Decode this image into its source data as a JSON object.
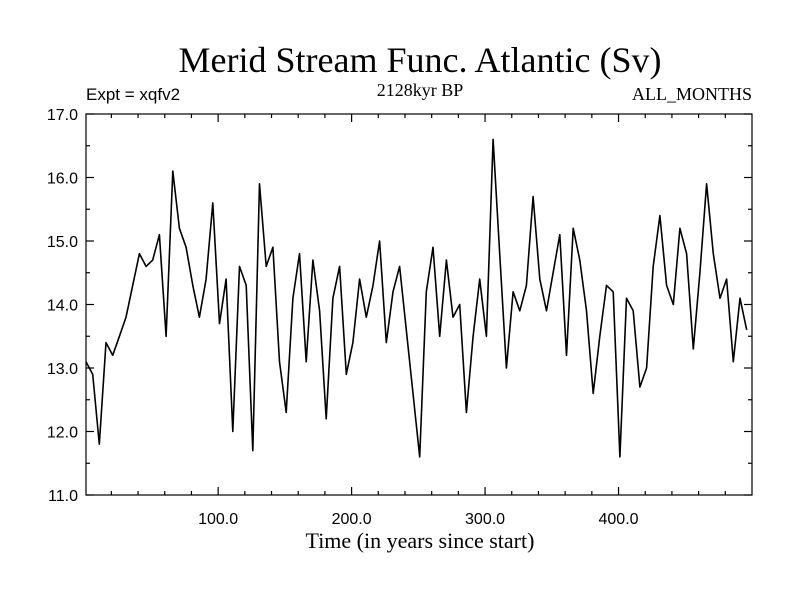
{
  "chart_data": {
    "type": "line",
    "title": "Merid Stream Func. Atlantic (Sv)",
    "subtitle_left": "Expt = xqfv2",
    "subtitle_center": "2128kyr BP",
    "subtitle_right": "ALL_MONTHS",
    "xlabel": "Time (in years since start)",
    "ylabel": "",
    "xlim": [
      1,
      500
    ],
    "ylim": [
      11.0,
      17.0
    ],
    "xticks": [
      100.0,
      200.0,
      300.0,
      400.0
    ],
    "xtick_labels": [
      "100.0",
      "200.0",
      "300.0",
      "400.0"
    ],
    "yticks": [
      11.0,
      12.0,
      13.0,
      14.0,
      15.0,
      16.0,
      17.0
    ],
    "ytick_labels": [
      "11.0",
      "12.0",
      "13.0",
      "14.0",
      "15.0",
      "16.0",
      "17.0"
    ],
    "series": [
      {
        "name": "Merid Stream Func. Atlantic",
        "color": "#000000",
        "x_start": 1,
        "x_step": 5,
        "values": [
          13.1,
          12.9,
          11.8,
          13.4,
          13.2,
          13.5,
          13.8,
          14.3,
          14.8,
          14.6,
          14.7,
          15.1,
          13.5,
          16.1,
          15.2,
          14.9,
          14.3,
          13.8,
          14.4,
          15.6,
          13.7,
          14.4,
          12.0,
          14.6,
          14.3,
          11.7,
          15.9,
          14.6,
          14.9,
          13.1,
          12.3,
          14.1,
          14.8,
          13.1,
          14.7,
          13.9,
          12.2,
          14.1,
          14.6,
          12.9,
          13.4,
          14.4,
          13.8,
          14.3,
          15.0,
          13.4,
          14.2,
          14.6,
          13.6,
          12.6,
          11.6,
          14.2,
          14.9,
          13.5,
          14.7,
          13.8,
          14.0,
          12.3,
          13.5,
          14.4,
          13.5,
          16.6,
          14.8,
          13.0,
          14.2,
          13.9,
          14.3,
          15.7,
          14.4,
          13.9,
          14.5,
          15.1,
          13.2,
          15.2,
          14.7,
          13.9,
          12.6,
          13.5,
          14.3,
          14.2,
          11.6,
          14.1,
          13.9,
          12.7,
          13.0,
          14.6,
          15.4,
          14.3,
          14.0,
          15.2,
          14.8,
          13.3,
          14.5,
          15.9,
          14.8,
          14.1,
          14.4,
          13.1,
          14.1,
          13.6
        ]
      }
    ]
  }
}
